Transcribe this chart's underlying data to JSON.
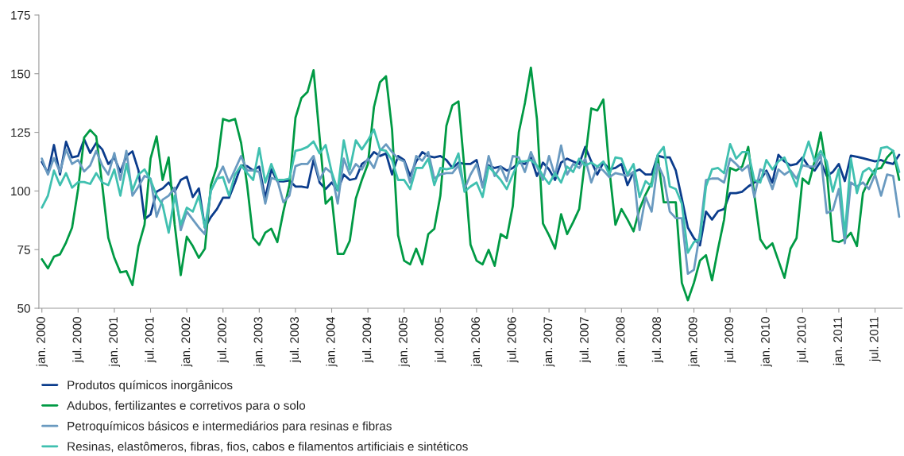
{
  "chart_data": {
    "type": "line",
    "categories": [
      "jan. 2000",
      null,
      null,
      null,
      null,
      null,
      "jul. 2000",
      null,
      null,
      null,
      null,
      null,
      "jan. 2001",
      null,
      null,
      null,
      null,
      null,
      "jul. 2001",
      null,
      null,
      null,
      null,
      null,
      "jan. 2002",
      null,
      null,
      null,
      null,
      null,
      "jul. 2002",
      null,
      null,
      null,
      null,
      null,
      "jan. 2003",
      null,
      null,
      null,
      null,
      null,
      "jul. 2003",
      null,
      null,
      null,
      null,
      null,
      "jan. 2004",
      null,
      null,
      null,
      null,
      null,
      "jul. 2004",
      null,
      null,
      null,
      null,
      null,
      "jan. 2005",
      null,
      null,
      null,
      null,
      null,
      "jul. 2005",
      null,
      null,
      null,
      null,
      null,
      "jan. 2006",
      null,
      null,
      null,
      null,
      null,
      "jul. 2006",
      null,
      null,
      null,
      null,
      null,
      "jan. 2007",
      null,
      null,
      null,
      null,
      null,
      "jul. 2007",
      null,
      null,
      null,
      null,
      null,
      "jan. 2008",
      null,
      null,
      null,
      null,
      null,
      "jul. 2008",
      null,
      null,
      null,
      null,
      null,
      "jan. 2009",
      null,
      null,
      null,
      null,
      null,
      "jul. 2009",
      null,
      null,
      null,
      null,
      null,
      "jan. 2010",
      null,
      null,
      null,
      null,
      null,
      "jul. 2010",
      null,
      null,
      null,
      null,
      null,
      "jan. 2011",
      null,
      null,
      null,
      null,
      null,
      "jul. 2011",
      null,
      null,
      null,
      null
    ],
    "series": [
      {
        "name": "Produtos químicos inorgânicos",
        "color": "#0b3c8c",
        "values": [
          112.4,
          107.6,
          119.6,
          107,
          121,
          114.3,
          114.9,
          122,
          116.2,
          120.5,
          117.7,
          111.5,
          114.3,
          108.1,
          114.9,
          116.9,
          108.7,
          88,
          90,
          99.7,
          101.1,
          103.6,
          99.7,
          104.7,
          106.1,
          97.4,
          101.1,
          84.4,
          88.9,
          92.3,
          97.1,
          97.1,
          103.6,
          110.9,
          110.6,
          108.7,
          110.4,
          96.8,
          109.2,
          104.2,
          104.1,
          104.5,
          101.9,
          101.9,
          101.4,
          113.2,
          103.6,
          100.8,
          103.6,
          100.2,
          107,
          104.7,
          105.3,
          111.5,
          113.2,
          116.6,
          114.9,
          116,
          107,
          114.9,
          113.2,
          106.4,
          112.6,
          116.6,
          114.9,
          114.3,
          114.9,
          113.2,
          109.8,
          112.1,
          111.5,
          111.5,
          113.2,
          101.9,
          110.9,
          109.8,
          110.4,
          108.7,
          109.8,
          112.1,
          111.5,
          114.3,
          106.4,
          112.1,
          109.2,
          104.7,
          112.1,
          113.8,
          112.6,
          111.5,
          118.8,
          112.6,
          107,
          112.1,
          109.2,
          109.8,
          111.5,
          102.5,
          108.1,
          109.2,
          107,
          107,
          115.1,
          114.3,
          114.3,
          108.7,
          96.8,
          84.4,
          79.9,
          76.8,
          91.2,
          87.8,
          91.4,
          92.3,
          99.1,
          99.1,
          99.7,
          101.9,
          103.6,
          104.7,
          108.7,
          103.6,
          115.4,
          112.6,
          110.9,
          111.5,
          114.3,
          110.4,
          108.7,
          112.6,
          106.4,
          108.1,
          111.5,
          104.2,
          115.1,
          114.6,
          114,
          113.3,
          112.6,
          113.2,
          112.1,
          111.5,
          115.4
        ]
      },
      {
        "name": "Adubos, fertilizantes e corretivos para o solo",
        "color": "#009a44",
        "values": [
          70.9,
          67,
          72,
          73,
          78,
          84.4,
          100.8,
          122.8,
          126,
          123.3,
          102.5,
          80,
          71.5,
          65.3,
          65.8,
          59.9,
          76.5,
          85.6,
          113.8,
          123.3,
          104.7,
          114.3,
          85.6,
          64.1,
          80.5,
          76.5,
          71.5,
          75.4,
          102.5,
          110.4,
          130.7,
          129.8,
          130.7,
          120.5,
          102.5,
          80,
          77,
          82.2,
          83.9,
          78.2,
          91.2,
          102.5,
          131.2,
          139.7,
          142.2,
          151.5,
          123,
          94.6,
          97.4,
          73.2,
          73.2,
          78.8,
          96.8,
          104.7,
          111.5,
          135.7,
          146.4,
          148.9,
          126.2,
          81.1,
          70.3,
          68.7,
          75.4,
          68.7,
          81.6,
          83.9,
          98,
          127.8,
          136.5,
          138.2,
          109.2,
          77.1,
          70.3,
          68.7,
          74.9,
          68.1,
          81.6,
          79.9,
          93.5,
          125,
          137.4,
          152.6,
          130.7,
          86.1,
          81.1,
          75.4,
          90.1,
          81.6,
          86.7,
          92.3,
          113.8,
          135.2,
          134.3,
          139,
          109,
          85.6,
          92.3,
          87.8,
          82.8,
          92.3,
          98.5,
          103.6,
          114.9,
          95.2,
          95.2,
          95.2,
          60.8,
          53.4,
          60.8,
          70.3,
          72.6,
          61.9,
          75.4,
          87.8,
          109.8,
          108.7,
          110.4,
          118.8,
          98.5,
          79.4,
          75.4,
          77.7,
          70.3,
          63,
          75.4,
          79.9,
          105.3,
          103,
          112.6,
          125,
          108.7,
          78.8,
          78.2,
          79.4,
          82.2,
          76.5,
          99.1,
          104.7,
          109.2,
          109.8,
          114.3,
          117.1,
          104.7
        ]
      },
      {
        "name": "Petroquímicos básicos e intermediários para resinas e fibras",
        "color": "#6a9ac0",
        "values": [
          113.8,
          107,
          114,
          108.1,
          117.7,
          111.5,
          113.2,
          108.3,
          110.9,
          117.1,
          110.9,
          107,
          116.2,
          104.7,
          117.1,
          98,
          101.9,
          106.4,
          105.3,
          89,
          96.3,
          98,
          101.4,
          83.3,
          91.2,
          87.8,
          84.4,
          81.6,
          100.2,
          105.3,
          110.4,
          103.6,
          109.2,
          114.9,
          108.7,
          108.7,
          108.1,
          94.6,
          105.6,
          104.7,
          95.2,
          98,
          110.6,
          111.5,
          111.5,
          114.9,
          104.7,
          109.8,
          107.6,
          94.6,
          113.8,
          107,
          111.5,
          109.2,
          113.8,
          109.8,
          117.1,
          119.9,
          116.6,
          113.8,
          112.6,
          103.6,
          114.9,
          112.9,
          116.6,
          105.3,
          107,
          107.6,
          107.6,
          110.9,
          100.8,
          107,
          111.5,
          101.4,
          114.9,
          106.4,
          110.4,
          104.2,
          114.9,
          114.3,
          108.1,
          116.6,
          110.4,
          104.7,
          114.9,
          106.4,
          119.4,
          107,
          111.5,
          109.8,
          113.8,
          103.6,
          110.4,
          108.7,
          105.9,
          107.6,
          107,
          106.4,
          108.1,
          83.3,
          97.4,
          91.2,
          111.5,
          105.9,
          91.2,
          88.4,
          88.4,
          64.7,
          66.4,
          82.2,
          104.7,
          105.3,
          105.3,
          103.6,
          113.8,
          111.5,
          108.7,
          110.9,
          97.4,
          109.2,
          107.6,
          100.8,
          109.2,
          107,
          108.7,
          105.3,
          110.9,
          110.4,
          110.4,
          115.4,
          90.6,
          91.8,
          100.8,
          77.7,
          103.6,
          101.9,
          103.6,
          100.8,
          107,
          98,
          107,
          106.4,
          89
        ]
      },
      {
        "name": "Resinas, elastômeros, fibras, fios, cabos e filamentos artificiais e sintéticos",
        "color": "#40c0b0",
        "values": [
          92.9,
          98,
          108.7,
          102.5,
          107.6,
          101.4,
          103.8,
          103.8,
          103,
          107.6,
          103.6,
          102.5,
          109.2,
          98,
          111.5,
          100.2,
          107,
          109.2,
          104.7,
          98,
          94,
          82.2,
          98,
          85.6,
          92.9,
          91.2,
          98,
          84.4,
          100.2,
          105.3,
          105.9,
          98,
          107,
          110.9,
          107.6,
          104.7,
          118.3,
          103.6,
          111.5,
          104.7,
          104.7,
          105.3,
          117.1,
          117.7,
          118.8,
          121.1,
          116,
          119.6,
          108.1,
          100.2,
          121.6,
          109.2,
          121.6,
          117.7,
          121.6,
          126.2,
          117.7,
          117.1,
          113.2,
          104.7,
          104.7,
          100.8,
          109.8,
          109.8,
          113.8,
          102.5,
          109.8,
          109.2,
          109.8,
          116,
          99.7,
          101.9,
          103.6,
          97.4,
          110.4,
          107.6,
          104.7,
          100.8,
          107,
          112.6,
          112.6,
          113.2,
          110.9,
          106.4,
          103,
          107.6,
          103.6,
          110.4,
          108.1,
          113.8,
          110.9,
          112.1,
          110.4,
          112.6,
          107,
          114.3,
          113.8,
          107,
          111.5,
          97.4,
          104.2,
          101.9,
          115.4,
          118.8,
          101.9,
          100.8,
          94.6,
          73.7,
          78.2,
          79.4,
          101.9,
          109.2,
          109.8,
          107.6,
          120,
          113.8,
          116.6,
          116.6,
          104.7,
          103.6,
          113.2,
          109.2,
          112.6,
          114.3,
          108.1,
          101.9,
          113.2,
          121.1,
          112.6,
          117.1,
          112.6,
          99.7,
          109.2,
          81.1,
          113.8,
          99.1,
          108.1,
          109.8,
          107,
          118.3,
          118.8,
          117.1,
          108.1
        ]
      }
    ],
    "ylim": [
      50,
      175
    ],
    "yticks": [
      50,
      75,
      100,
      125,
      150,
      175
    ],
    "grid": false,
    "legend": "bottom left"
  }
}
